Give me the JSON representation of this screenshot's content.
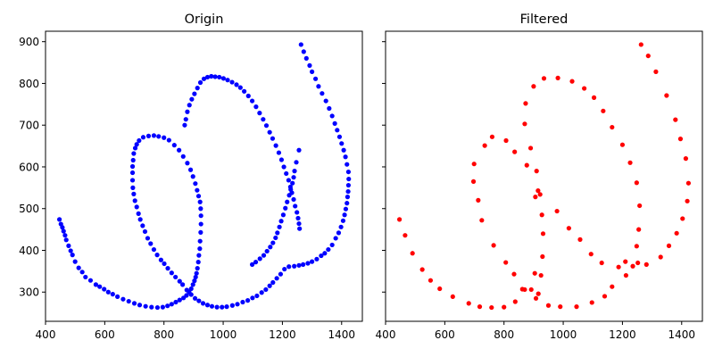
{
  "chart_data": [
    {
      "type": "scatter",
      "title": "Origin",
      "xlabel": "",
      "ylabel": "",
      "xlim": [
        400,
        1470
      ],
      "ylim": [
        230,
        925
      ],
      "xticks": [
        400,
        600,
        800,
        1000,
        1200,
        1400
      ],
      "yticks": [
        300,
        400,
        500,
        600,
        700,
        800,
        900
      ],
      "show_ytick_labels": true,
      "grid": false,
      "color": "#0000ff",
      "points": [
        [
          447,
          474
        ],
        [
          452,
          463
        ],
        [
          457,
          455
        ],
        [
          461,
          446
        ],
        [
          466,
          436
        ],
        [
          470,
          425
        ],
        [
          478,
          411
        ],
        [
          485,
          399
        ],
        [
          491,
          389
        ],
        [
          500,
          373
        ],
        [
          512,
          358
        ],
        [
          524,
          348
        ],
        [
          535,
          336
        ],
        [
          552,
          328
        ],
        [
          570,
          318
        ],
        [
          583,
          313
        ],
        [
          598,
          307
        ],
        [
          612,
          300
        ],
        [
          627,
          295
        ],
        [
          643,
          289
        ],
        [
          662,
          283
        ],
        [
          681,
          278
        ],
        [
          700,
          273
        ],
        [
          718,
          269
        ],
        [
          738,
          266
        ],
        [
          758,
          264
        ],
        [
          778,
          263
        ],
        [
          796,
          264
        ],
        [
          812,
          267
        ],
        [
          826,
          271
        ],
        [
          840,
          276
        ],
        [
          853,
          281
        ],
        [
          866,
          286
        ],
        [
          876,
          292
        ],
        [
          885,
          300
        ],
        [
          892,
          308
        ],
        [
          898,
          318
        ],
        [
          903,
          327
        ],
        [
          907,
          336
        ],
        [
          910,
          345
        ],
        [
          913,
          357
        ],
        [
          916,
          372
        ],
        [
          918,
          388
        ],
        [
          921,
          404
        ],
        [
          922,
          422
        ],
        [
          924,
          443
        ],
        [
          925,
          463
        ],
        [
          925,
          483
        ],
        [
          924,
          500
        ],
        [
          922,
          516
        ],
        [
          917,
          530
        ],
        [
          912,
          544
        ],
        [
          906,
          560
        ],
        [
          898,
          577
        ],
        [
          890,
          593
        ],
        [
          879,
          609
        ],
        [
          865,
          625
        ],
        [
          851,
          640
        ],
        [
          835,
          652
        ],
        [
          817,
          664
        ],
        [
          800,
          670
        ],
        [
          782,
          673
        ],
        [
          766,
          675
        ],
        [
          748,
          674
        ],
        [
          730,
          671
        ],
        [
          716,
          663
        ],
        [
          708,
          654
        ],
        [
          703,
          645
        ],
        [
          698,
          632
        ],
        [
          696,
          616
        ],
        [
          694,
          601
        ],
        [
          694,
          586
        ],
        [
          694,
          568
        ],
        [
          695,
          550
        ],
        [
          698,
          535
        ],
        [
          702,
          519
        ],
        [
          708,
          504
        ],
        [
          714,
          488
        ],
        [
          720,
          474
        ],
        [
          728,
          459
        ],
        [
          736,
          445
        ],
        [
          745,
          429
        ],
        [
          755,
          416
        ],
        [
          766,
          402
        ],
        [
          777,
          389
        ],
        [
          790,
          377
        ],
        [
          801,
          368
        ],
        [
          813,
          357
        ],
        [
          826,
          346
        ],
        [
          839,
          336
        ],
        [
          853,
          326
        ],
        [
          863,
          318
        ],
        [
          877,
          305
        ],
        [
          892,
          294
        ],
        [
          905,
          285
        ],
        [
          918,
          279
        ],
        [
          932,
          273
        ],
        [
          947,
          269
        ],
        [
          962,
          266
        ],
        [
          979,
          264
        ],
        [
          996,
          264
        ],
        [
          1012,
          265
        ],
        [
          1031,
          268
        ],
        [
          1048,
          271
        ],
        [
          1066,
          276
        ],
        [
          1083,
          280
        ],
        [
          1099,
          286
        ],
        [
          1114,
          291
        ],
        [
          1130,
          299
        ],
        [
          1144,
          306
        ],
        [
          1157,
          315
        ],
        [
          1168,
          323
        ],
        [
          1181,
          333
        ],
        [
          1194,
          343
        ],
        [
          1207,
          355
        ],
        [
          1222,
          361
        ],
        [
          1240,
          362
        ],
        [
          1256,
          364
        ],
        [
          1270,
          366
        ],
        [
          1286,
          369
        ],
        [
          1300,
          373
        ],
        [
          1316,
          379
        ],
        [
          1331,
          387
        ],
        [
          1343,
          393
        ],
        [
          1355,
          402
        ],
        [
          1368,
          413
        ],
        [
          1380,
          429
        ],
        [
          1390,
          442
        ],
        [
          1398,
          456
        ],
        [
          1405,
          471
        ],
        [
          1410,
          485
        ],
        [
          1414,
          499
        ],
        [
          1418,
          513
        ],
        [
          1420,
          528
        ],
        [
          1422,
          541
        ],
        [
          1423,
          556
        ],
        [
          1424,
          571
        ],
        [
          1423,
          588
        ],
        [
          1418,
          606
        ],
        [
          1413,
          624
        ],
        [
          1407,
          640
        ],
        [
          1400,
          656
        ],
        [
          1393,
          672
        ],
        [
          1385,
          688
        ],
        [
          1377,
          704
        ],
        [
          1368,
          722
        ],
        [
          1358,
          740
        ],
        [
          1347,
          758
        ],
        [
          1334,
          776
        ],
        [
          1322,
          793
        ],
        [
          1312,
          811
        ],
        [
          1300,
          828
        ],
        [
          1292,
          843
        ],
        [
          1281,
          860
        ],
        [
          1272,
          876
        ],
        [
          1263,
          893
        ],
        [
          1256,
          640
        ],
        [
          1247,
          611
        ],
        [
          1241,
          590
        ],
        [
          1238,
          575
        ],
        [
          1234,
          561
        ],
        [
          1228,
          546
        ],
        [
          1223,
          532
        ],
        [
          1216,
          516
        ],
        [
          1210,
          501
        ],
        [
          1203,
          485
        ],
        [
          1196,
          470
        ],
        [
          1190,
          456
        ],
        [
          1183,
          442
        ],
        [
          1177,
          430
        ],
        [
          1168,
          418
        ],
        [
          1159,
          408
        ],
        [
          1148,
          398
        ],
        [
          1137,
          388
        ],
        [
          1124,
          380
        ],
        [
          1110,
          372
        ],
        [
          1098,
          366
        ],
        [
          870,
          700
        ],
        [
          874,
          714
        ],
        [
          879,
          732
        ],
        [
          886,
          748
        ],
        [
          894,
          762
        ],
        [
          903,
          775
        ],
        [
          913,
          789
        ],
        [
          923,
          802
        ],
        [
          935,
          811
        ],
        [
          947,
          815
        ],
        [
          960,
          817
        ],
        [
          973,
          816
        ],
        [
          987,
          815
        ],
        [
          1001,
          812
        ],
        [
          1015,
          808
        ],
        [
          1030,
          803
        ],
        [
          1045,
          797
        ],
        [
          1058,
          790
        ],
        [
          1071,
          781
        ],
        [
          1085,
          770
        ],
        [
          1098,
          758
        ],
        [
          1111,
          744
        ],
        [
          1123,
          729
        ],
        [
          1135,
          714
        ],
        [
          1146,
          699
        ],
        [
          1157,
          683
        ],
        [
          1167,
          668
        ],
        [
          1178,
          651
        ],
        [
          1188,
          634
        ],
        [
          1197,
          617
        ],
        [
          1205,
          600
        ],
        [
          1213,
          584
        ],
        [
          1221,
          568
        ],
        [
          1227,
          552
        ],
        [
          1232,
          538
        ],
        [
          1238,
          522
        ],
        [
          1243,
          506
        ],
        [
          1249,
          491
        ],
        [
          1253,
          477
        ],
        [
          1256,
          464
        ],
        [
          1258,
          452
        ]
      ]
    },
    {
      "type": "scatter",
      "title": "Filtered",
      "xlabel": "",
      "ylabel": "",
      "xlim": [
        400,
        1470
      ],
      "ylim": [
        230,
        925
      ],
      "xticks": [
        400,
        600,
        800,
        1000,
        1200,
        1400
      ],
      "yticks": [
        300,
        400,
        500,
        600,
        700,
        800,
        900
      ],
      "show_ytick_labels": false,
      "grid": false,
      "color": "#ff0000",
      "points": [
        [
          447,
          474
        ],
        [
          466,
          436
        ],
        [
          491,
          393
        ],
        [
          524,
          354
        ],
        [
          552,
          328
        ],
        [
          583,
          308
        ],
        [
          627,
          289
        ],
        [
          681,
          273
        ],
        [
          718,
          265
        ],
        [
          758,
          263
        ],
        [
          800,
          264
        ],
        [
          838,
          277
        ],
        [
          870,
          306
        ],
        [
          892,
          306
        ],
        [
          908,
          285
        ],
        [
          925,
          340
        ],
        [
          930,
          385
        ],
        [
          932,
          440
        ],
        [
          928,
          485
        ],
        [
          922,
          534
        ],
        [
          910,
          590
        ],
        [
          890,
          645
        ],
        [
          870,
          703
        ],
        [
          873,
          752
        ],
        [
          900,
          793
        ],
        [
          935,
          812
        ],
        [
          982,
          813
        ],
        [
          1030,
          805
        ],
        [
          1071,
          788
        ],
        [
          1104,
          766
        ],
        [
          1135,
          734
        ],
        [
          1165,
          695
        ],
        [
          1200,
          653
        ],
        [
          1226,
          610
        ],
        [
          1248,
          562
        ],
        [
          1258,
          507
        ],
        [
          1255,
          450
        ],
        [
          1248,
          410
        ],
        [
          1235,
          362
        ],
        [
          1212,
          340
        ],
        [
          1187,
          360
        ],
        [
          1165,
          313
        ],
        [
          1140,
          290
        ],
        [
          1097,
          275
        ],
        [
          1045,
          265
        ],
        [
          990,
          265
        ],
        [
          950,
          268
        ],
        [
          916,
          296
        ],
        [
          904,
          345
        ],
        [
          915,
          543
        ],
        [
          906,
          528
        ],
        [
          877,
          604
        ],
        [
          836,
          636
        ],
        [
          807,
          663
        ],
        [
          760,
          672
        ],
        [
          735,
          651
        ],
        [
          725,
          472
        ],
        [
          713,
          520
        ],
        [
          697,
          565
        ],
        [
          699,
          607
        ],
        [
          765,
          412
        ],
        [
          806,
          371
        ],
        [
          834,
          343
        ],
        [
          862,
          307
        ],
        [
          979,
          494
        ],
        [
          1019,
          453
        ],
        [
          1057,
          426
        ],
        [
          1094,
          391
        ],
        [
          1130,
          370
        ],
        [
          1210,
          373
        ],
        [
          1252,
          370
        ],
        [
          1281,
          366
        ],
        [
          1329,
          384
        ],
        [
          1357,
          411
        ],
        [
          1383,
          441
        ],
        [
          1403,
          476
        ],
        [
          1419,
          518
        ],
        [
          1423,
          561
        ],
        [
          1414,
          620
        ],
        [
          1396,
          667
        ],
        [
          1379,
          713
        ],
        [
          1349,
          771
        ],
        [
          1313,
          828
        ],
        [
          1287,
          866
        ],
        [
          1263,
          893
        ]
      ]
    }
  ]
}
